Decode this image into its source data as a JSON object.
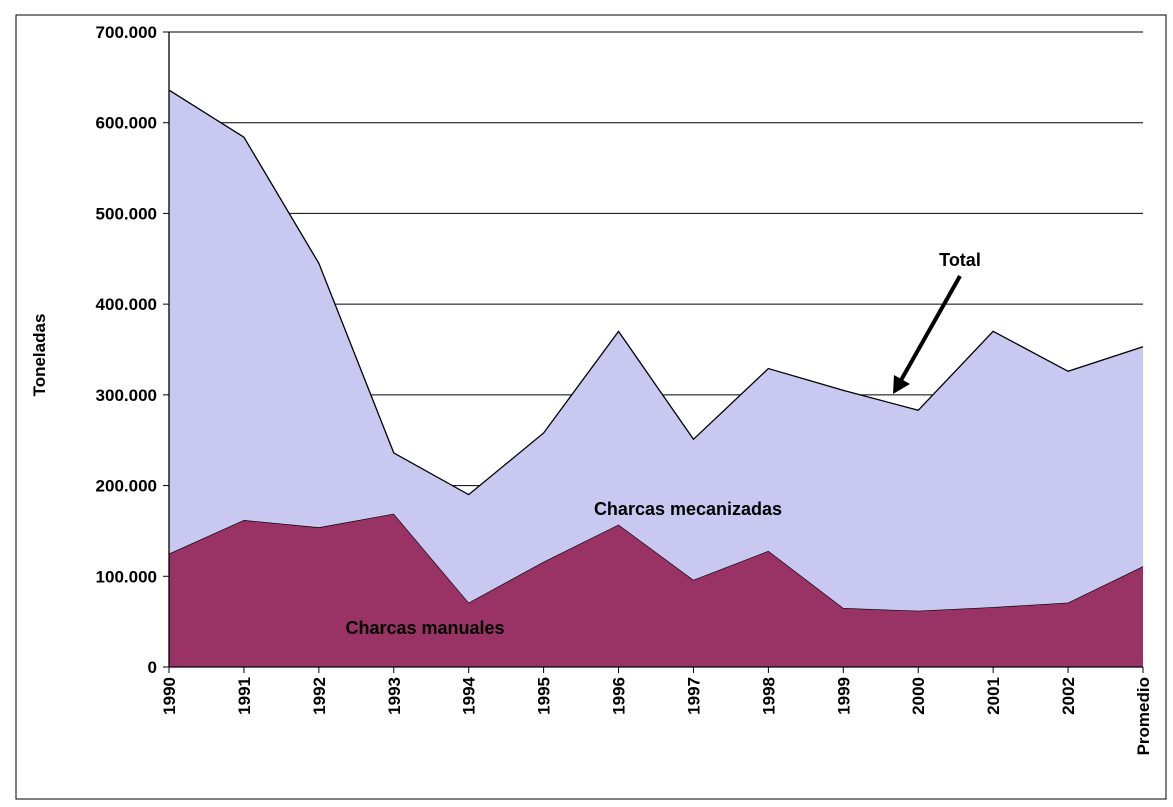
{
  "chart_data": {
    "type": "stacked_area",
    "y_label": "Toneladas",
    "categories": [
      "1990",
      "1991",
      "1992",
      "1993",
      "1994",
      "1995",
      "1996",
      "1997",
      "1998",
      "1999",
      "2000",
      "2001",
      "2002",
      "Promedio"
    ],
    "series": [
      {
        "name": "Charcas manuales",
        "color": "#993366",
        "values": [
          125000,
          162000,
          154000,
          169000,
          71000,
          116000,
          157000,
          96000,
          128000,
          65000,
          62000,
          66000,
          71000,
          111000
        ]
      },
      {
        "name": "Charcas mecanizadas",
        "color": "#c8c8f0",
        "values": [
          511000,
          422000,
          291000,
          67000,
          119000,
          142000,
          213000,
          155000,
          201000,
          240000,
          221000,
          304000,
          255000,
          242000
        ]
      }
    ],
    "annotations": [
      "Total"
    ],
    "ylim": [
      0,
      700000
    ],
    "yticks": [
      0,
      {
        "value": 100000,
        "label": "100.000"
      },
      {
        "value": 200000,
        "label": "200.000"
      },
      {
        "value": 300000,
        "label": "300.000"
      },
      {
        "value": 400000,
        "label": "400.000"
      },
      {
        "value": 500000,
        "label": "500.000"
      },
      {
        "value": 600000,
        "label": "600.000"
      },
      {
        "value": 700000,
        "label": "700.000"
      }
    ],
    "grid": true
  }
}
